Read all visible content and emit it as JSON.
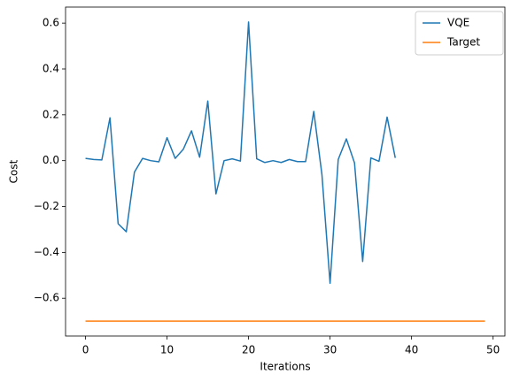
{
  "chart_data": {
    "type": "line",
    "x_label": "Iterations",
    "y_label": "Cost",
    "x": [
      0,
      1,
      2,
      3,
      4,
      5,
      6,
      7,
      8,
      9,
      10,
      11,
      12,
      13,
      14,
      15,
      16,
      17,
      18,
      19,
      20,
      21,
      22,
      23,
      24,
      25,
      26,
      27,
      28,
      29,
      30,
      31,
      32,
      33,
      34,
      35,
      36,
      37,
      38,
      39,
      40,
      41,
      42,
      43,
      44,
      45,
      46,
      47,
      48,
      49
    ],
    "series": [
      {
        "name": "VQE",
        "color": "#1f77b4",
        "values": [
          0.01,
          0.005,
          0.003,
          0.187,
          -0.275,
          -0.31,
          -0.05,
          0.01,
          0.0,
          -0.005,
          0.1,
          0.01,
          0.05,
          0.13,
          0.015,
          0.26,
          -0.145,
          0.0,
          0.008,
          -0.002,
          0.605,
          0.008,
          -0.008,
          0.0,
          -0.008,
          0.005,
          -0.004,
          -0.004,
          0.215,
          -0.06,
          -0.535,
          0.005,
          0.095,
          -0.01,
          -0.44,
          0.012,
          -0.003,
          0.19,
          0.012,
          null,
          null,
          null,
          null,
          null,
          null,
          null,
          null,
          null,
          null,
          null
        ]
      },
      {
        "name": "Target",
        "color": "#ff7f0e",
        "values": [
          -0.7,
          -0.7,
          -0.7,
          -0.7,
          -0.7,
          -0.7,
          -0.7,
          -0.7,
          -0.7,
          -0.7,
          -0.7,
          -0.7,
          -0.7,
          -0.7,
          -0.7,
          -0.7,
          -0.7,
          -0.7,
          -0.7,
          -0.7,
          -0.7,
          -0.7,
          -0.7,
          -0.7,
          -0.7,
          -0.7,
          -0.7,
          -0.7,
          -0.7,
          -0.7,
          -0.7,
          -0.7,
          -0.7,
          -0.7,
          -0.7,
          -0.7,
          -0.7,
          -0.7,
          -0.7,
          -0.7,
          -0.7,
          -0.7,
          -0.7,
          -0.7,
          -0.7,
          -0.7,
          -0.7,
          -0.7,
          -0.7,
          -0.7
        ]
      }
    ],
    "xlim": [
      -2.45,
      51.45
    ],
    "xticks": [
      0,
      10,
      20,
      30,
      40,
      50
    ],
    "ylim": [
      -0.765,
      0.67
    ],
    "yticks": [
      {
        "value": -0.6,
        "label": "−0.6"
      },
      {
        "value": -0.4,
        "label": "−0.4"
      },
      {
        "value": -0.2,
        "label": "−0.2"
      },
      {
        "value": 0,
        "label": "0.0"
      },
      0.2,
      0.4,
      0.6
    ],
    "grid": false,
    "legend": "upper right"
  }
}
